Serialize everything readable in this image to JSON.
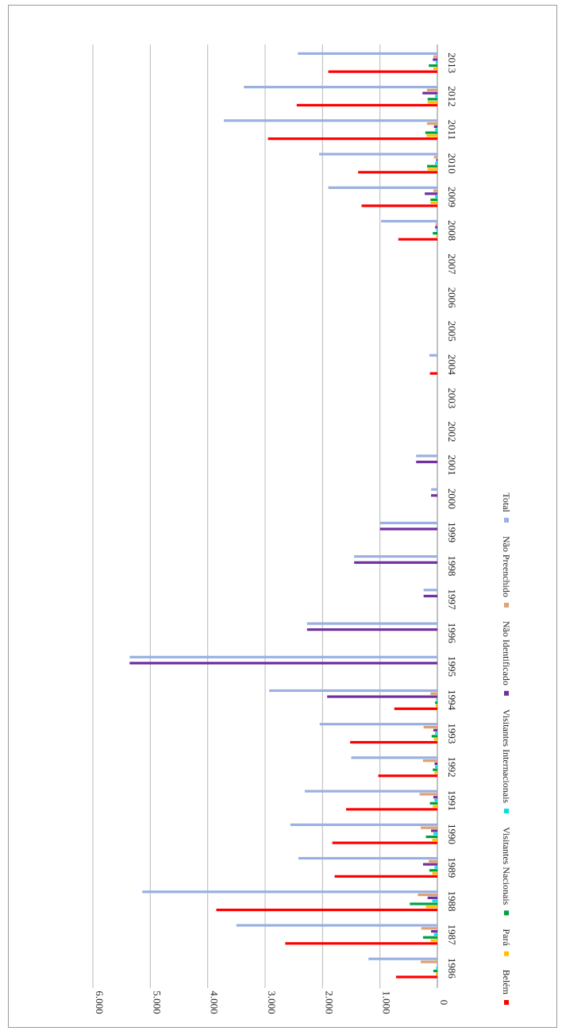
{
  "chart_data": {
    "type": "bar",
    "orientation": "rotated 90° clockwise (categories run downward, values extend left)",
    "title": "",
    "xlabel": "",
    "ylabel": "",
    "ylim": [
      0,
      6000
    ],
    "y_ticks": [
      "0",
      "1.000",
      "2.000",
      "3.000",
      "4.000",
      "5.000",
      "6.000"
    ],
    "grid": true,
    "legend_position": "bottom",
    "categories": [
      "1986",
      "1987",
      "1988",
      "1989",
      "1990",
      "1991",
      "1992",
      "1993",
      "1994",
      "1995",
      "1996",
      "1997",
      "1998",
      "1999",
      "2000",
      "2001",
      "2002",
      "2003",
      "2004",
      "2005",
      "2006",
      "2007",
      "2008",
      "2009",
      "2010",
      "2011",
      "2012",
      "2013"
    ],
    "series": [
      {
        "name": "Belém",
        "color": "#ff0000",
        "values": [
          720,
          2650,
          3850,
          1790,
          1830,
          1590,
          1030,
          1520,
          750,
          0,
          0,
          0,
          0,
          0,
          0,
          0,
          0,
          0,
          130,
          0,
          0,
          0,
          680,
          1320,
          1380,
          2950,
          2450,
          1900
        ]
      },
      {
        "name": "Pará",
        "color": "#ffc000",
        "values": [
          30,
          120,
          200,
          90,
          90,
          80,
          50,
          60,
          30,
          0,
          0,
          0,
          0,
          0,
          0,
          0,
          0,
          0,
          0,
          0,
          0,
          0,
          20,
          120,
          170,
          190,
          170,
          70
        ]
      },
      {
        "name": "Visitantes Nacionais",
        "color": "#00a040",
        "values": [
          70,
          250,
          480,
          140,
          200,
          130,
          80,
          100,
          40,
          0,
          0,
          0,
          0,
          0,
          0,
          0,
          0,
          0,
          0,
          0,
          0,
          0,
          80,
          120,
          180,
          210,
          170,
          150
        ]
      },
      {
        "name": "Visitantes Internacionais",
        "color": "#00e0e0",
        "values": [
          20,
          60,
          90,
          50,
          70,
          50,
          40,
          40,
          20,
          0,
          0,
          0,
          0,
          0,
          0,
          0,
          0,
          0,
          0,
          0,
          0,
          0,
          20,
          40,
          40,
          40,
          40,
          30
        ]
      },
      {
        "name": "Não Identificado",
        "color": "#7030a0",
        "values": [
          0,
          110,
          170,
          250,
          110,
          70,
          50,
          70,
          1920,
          5360,
          2270,
          240,
          1450,
          1000,
          110,
          370,
          0,
          0,
          0,
          0,
          0,
          0,
          40,
          220,
          20,
          60,
          260,
          80
        ]
      },
      {
        "name": "Não Preenchido",
        "color": "#e0a070",
        "values": [
          290,
          280,
          340,
          150,
          290,
          310,
          250,
          240,
          120,
          0,
          0,
          0,
          0,
          0,
          0,
          0,
          0,
          0,
          0,
          0,
          0,
          0,
          30,
          70,
          60,
          180,
          180,
          70
        ]
      },
      {
        "name": "Total",
        "color": "#9ab0e0",
        "values": [
          1200,
          3500,
          5140,
          2420,
          2560,
          2310,
          1500,
          2050,
          2930,
          5360,
          2270,
          240,
          1450,
          1000,
          110,
          370,
          0,
          0,
          140,
          0,
          0,
          0,
          980,
          1900,
          2060,
          3720,
          3370,
          2430
        ]
      }
    ]
  }
}
